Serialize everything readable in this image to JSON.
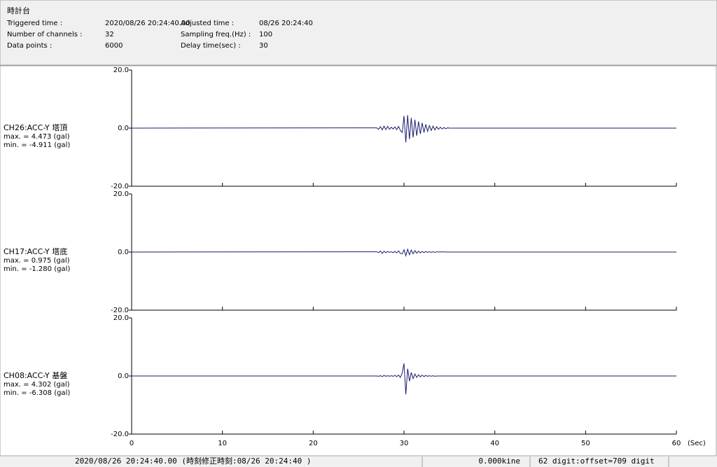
{
  "header": {
    "title": "時計台",
    "fields": [
      [
        "Triggered time :",
        "2020/08/26 20:24:40.00",
        "Adjusted time :",
        "08/26 20:24:40"
      ],
      [
        "Number of channels :",
        "32",
        "Sampling freq.(Hz) :",
        "100"
      ],
      [
        "Data points :",
        "6000",
        "Delay time(sec) :",
        "30"
      ]
    ]
  },
  "chart_data": [
    {
      "type": "line",
      "label": "CH26:ACC-Y 塔頂",
      "max_label": "max. = 4.473 (gal)",
      "min_label": "min. = -4.911 (gal)",
      "x": [
        0,
        27,
        27.2,
        27.4,
        27.6,
        27.8,
        28,
        28.2,
        28.4,
        28.6,
        28.8,
        29,
        29.2,
        29.4,
        29.6,
        29.8,
        30,
        30.2,
        30.4,
        30.6,
        30.8,
        31,
        31.2,
        31.4,
        31.6,
        31.8,
        32,
        32.2,
        32.4,
        32.6,
        32.8,
        33,
        33.2,
        33.4,
        33.6,
        33.8,
        34,
        34.2,
        34.4,
        34.6,
        34.8,
        35,
        60
      ],
      "series": [
        {
          "color": "#1c1c6e",
          "values": [
            0,
            0.1,
            -0.4,
            0.5,
            -0.6,
            0.7,
            -0.5,
            0.6,
            -0.4,
            0.3,
            -0.3,
            0.4,
            -0.5,
            0.6,
            -0.8,
            -1.5,
            4.2,
            -4.911,
            4.473,
            -3.8,
            3.5,
            -3.2,
            2.9,
            -2.6,
            2.3,
            -2.0,
            1.8,
            -1.5,
            1.3,
            -1.1,
            0.9,
            -0.8,
            0.7,
            -0.6,
            0.5,
            -0.4,
            0.3,
            -0.3,
            0.2,
            -0.2,
            0.1,
            0,
            0
          ]
        }
      ],
      "xlim": [
        0,
        60
      ],
      "xticks": [
        0,
        10,
        20,
        30,
        40,
        50,
        60
      ],
      "ylim": [
        -20,
        20
      ],
      "yticks": [
        {
          "value": -20,
          "label": "-20.0"
        },
        {
          "value": 0,
          "label": "0.0"
        },
        {
          "value": 20,
          "label": "20.0"
        }
      ]
    },
    {
      "type": "line",
      "label": "CH17:ACC-Y 塔底",
      "max_label": "max. = 0.975 (gal)",
      "min_label": "min. = -1.280 (gal)",
      "x": [
        0,
        27,
        27.2,
        27.4,
        27.6,
        27.8,
        28,
        28.2,
        28.4,
        28.6,
        28.8,
        29,
        29.2,
        29.4,
        29.6,
        29.8,
        30,
        30.2,
        30.4,
        30.6,
        30.8,
        31,
        31.2,
        31.4,
        31.6,
        31.8,
        32,
        32.2,
        32.4,
        32.6,
        32.8,
        33,
        33.2,
        33.4,
        33.6,
        33.8,
        34,
        34.2,
        34.4,
        34.6,
        34.8,
        35,
        60
      ],
      "series": [
        {
          "color": "#1c1c6e",
          "values": [
            0,
            0.1,
            -0.2,
            0.4,
            -0.5,
            0.3,
            -0.2,
            0.2,
            -0.1,
            0.1,
            -0.2,
            0.2,
            -0.3,
            0.4,
            -0.5,
            -0.6,
            0.8,
            -1.28,
            0.975,
            -0.9,
            0.7,
            -0.6,
            0.5,
            -0.4,
            0.3,
            -0.3,
            0.2,
            -0.2,
            0.2,
            -0.1,
            0.1,
            -0.1,
            0.1,
            -0.1,
            0.1,
            0,
            0.1,
            0,
            0.1,
            0,
            0,
            0,
            0
          ]
        }
      ],
      "xlim": [
        0,
        60
      ],
      "xticks": [
        0,
        10,
        20,
        30,
        40,
        50,
        60
      ],
      "ylim": [
        -20,
        20
      ],
      "yticks": [
        {
          "value": -20,
          "label": "-20.0"
        },
        {
          "value": 0,
          "label": "0.0"
        },
        {
          "value": 20,
          "label": "20.0"
        }
      ]
    },
    {
      "type": "line",
      "label": "CH08:ACC-Y 基盤",
      "max_label": "max. = 4.302 (gal)",
      "min_label": "min. = -6.308 (gal)",
      "xlabel": "(Sec)",
      "x": [
        0,
        27,
        27.2,
        27.4,
        27.6,
        27.8,
        28,
        28.2,
        28.4,
        28.6,
        28.8,
        29,
        29.2,
        29.4,
        29.6,
        29.8,
        30,
        30.2,
        30.4,
        30.6,
        30.8,
        31,
        31.2,
        31.4,
        31.6,
        31.8,
        32,
        32.2,
        32.4,
        32.6,
        32.8,
        33,
        33.2,
        33.4,
        33.6,
        33.8,
        34,
        34.2,
        34.4,
        34.6,
        34.8,
        35,
        60
      ],
      "series": [
        {
          "color": "#1c1c6e",
          "values": [
            0,
            0,
            -0.1,
            0.1,
            -0.2,
            0.2,
            -0.1,
            0.1,
            -0.1,
            0.1,
            -0.1,
            0.2,
            -0.2,
            0.3,
            -0.5,
            1.0,
            4.302,
            -6.308,
            2.5,
            -1.8,
            1.2,
            -0.9,
            0.7,
            -0.5,
            0.4,
            -0.3,
            0.3,
            -0.2,
            0.2,
            -0.1,
            0.1,
            -0.1,
            0.1,
            -0.1,
            0,
            0,
            0,
            0,
            0,
            0,
            0,
            0,
            0
          ]
        }
      ],
      "xlim": [
        0,
        60
      ],
      "xticks": [
        0,
        10,
        20,
        30,
        40,
        50,
        60
      ],
      "ylim": [
        -20,
        20
      ],
      "yticks": [
        {
          "value": -20,
          "label": "-20.0"
        },
        {
          "value": 0,
          "label": "0.0"
        },
        {
          "value": 20,
          "label": "20.0"
        }
      ]
    }
  ],
  "status_bar": [
    "2020/08/26 20:24:40.00  (時刻修正時刻:08/26 20:24:40  )",
    "0.000kine",
    "62 digit:offset=709 digit"
  ]
}
